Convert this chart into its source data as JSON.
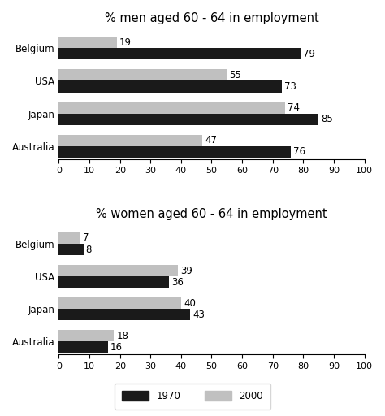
{
  "men_title": "% men aged 60 - 64 in employment",
  "women_title": "% women aged 60 - 64 in employment",
  "countries": [
    "Belgium",
    "USA",
    "Japan",
    "Australia"
  ],
  "men_1970": [
    79,
    73,
    85,
    76
  ],
  "men_2000": [
    19,
    55,
    74,
    47
  ],
  "women_1970": [
    8,
    36,
    43,
    16
  ],
  "women_2000": [
    7,
    39,
    40,
    18
  ],
  "color_1970": "#1a1a1a",
  "color_2000": "#c0c0c0",
  "bar_height": 0.35,
  "xlim": [
    0,
    100
  ],
  "xticks": [
    0,
    10,
    20,
    30,
    40,
    50,
    60,
    70,
    80,
    90,
    100
  ],
  "title_fontsize": 10.5,
  "label_fontsize": 8.5,
  "tick_fontsize": 8,
  "legend_1970": "1970",
  "legend_2000": "2000"
}
